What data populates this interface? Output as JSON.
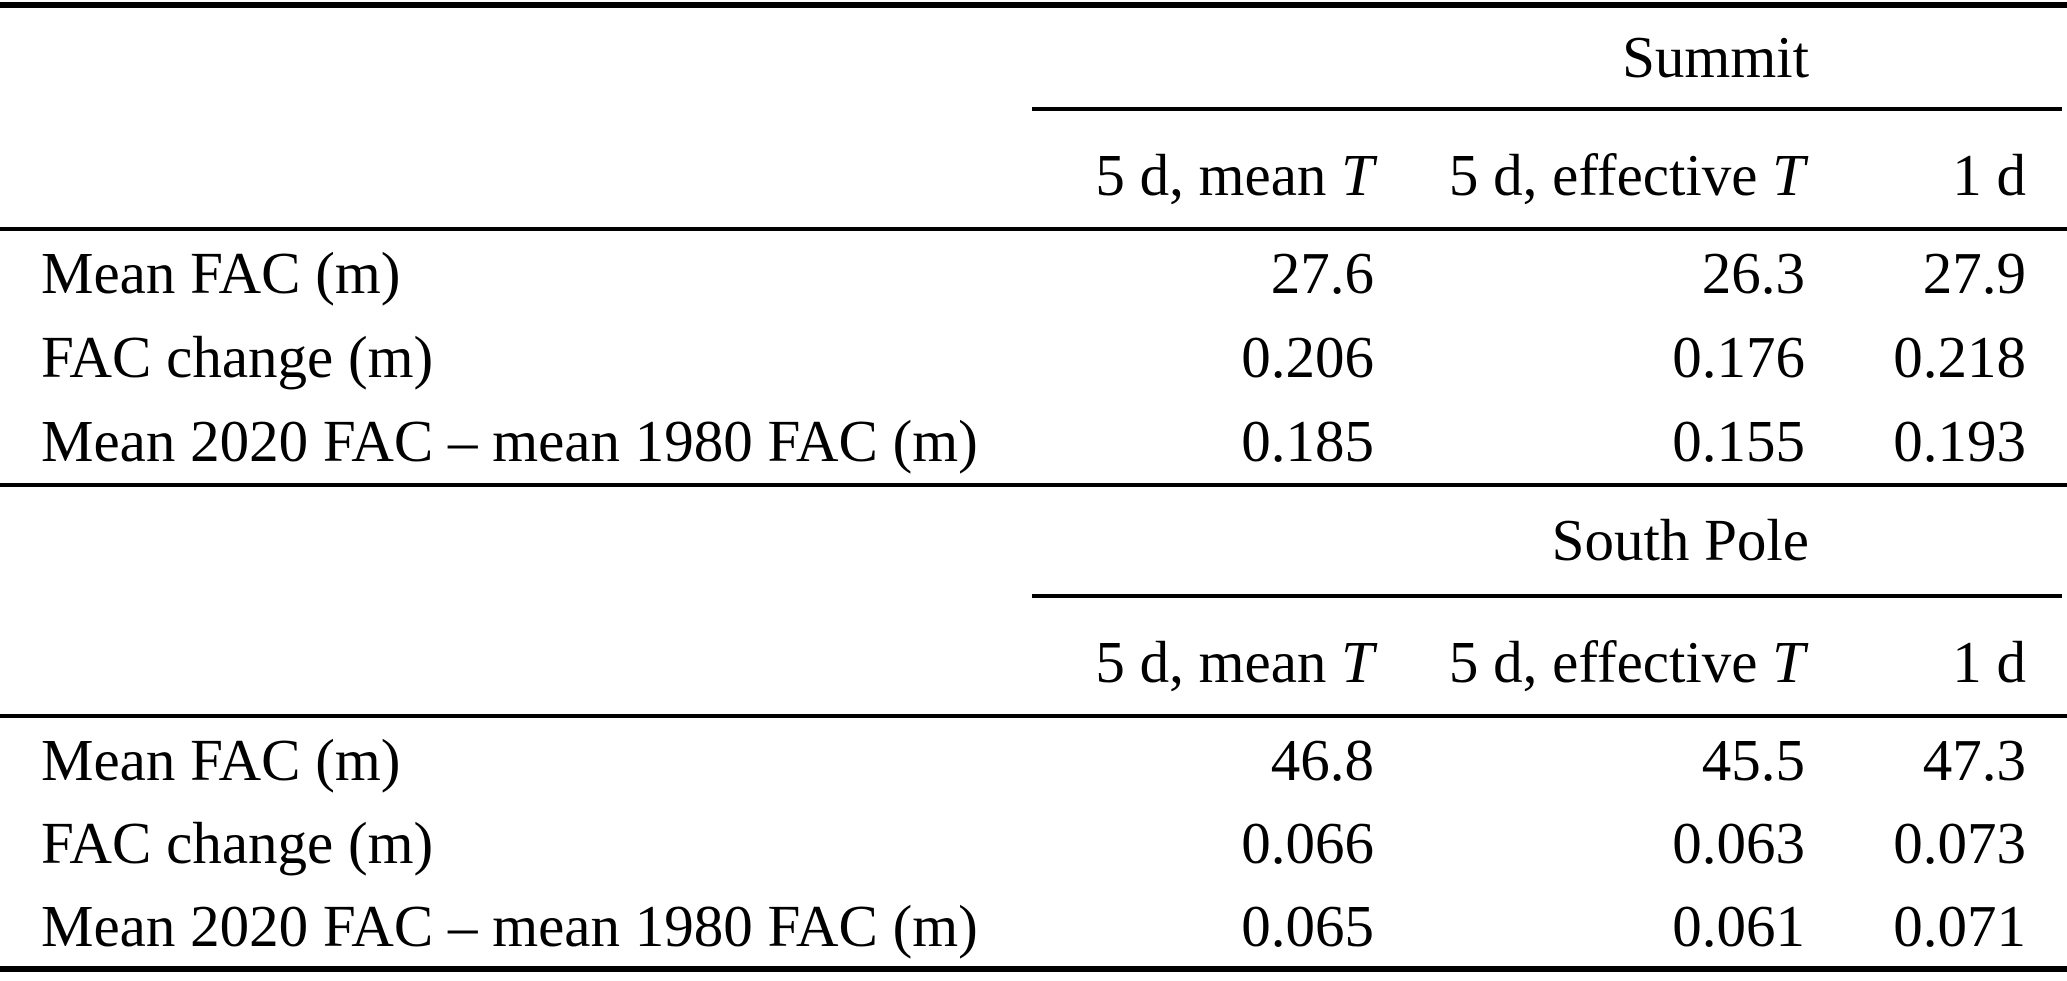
{
  "table": {
    "sections": [
      {
        "group_header": "Summit",
        "columns": [
          {
            "prefix": "5 d, mean ",
            "math": "T"
          },
          {
            "prefix": "5 d, effective ",
            "math": "T"
          },
          {
            "prefix": "1 d",
            "math": ""
          }
        ],
        "rows": [
          {
            "label": "Mean FAC (m)",
            "values": [
              "27.6",
              "26.3",
              "27.9"
            ]
          },
          {
            "label": "FAC change (m)",
            "values": [
              "0.206",
              "0.176",
              "0.218"
            ]
          },
          {
            "label": "Mean 2020 FAC – mean 1980 FAC (m)",
            "values": [
              "0.185",
              "0.155",
              "0.193"
            ]
          }
        ]
      },
      {
        "group_header": "South Pole",
        "columns": [
          {
            "prefix": "5 d, mean ",
            "math": "T"
          },
          {
            "prefix": "5 d, effective ",
            "math": "T"
          },
          {
            "prefix": "1 d",
            "math": ""
          }
        ],
        "rows": [
          {
            "label": "Mean FAC (m)",
            "values": [
              "46.8",
              "45.5",
              "47.3"
            ]
          },
          {
            "label": "FAC change (m)",
            "values": [
              "0.066",
              "0.063",
              "0.073"
            ]
          },
          {
            "label": "Mean 2020 FAC – mean 1980 FAC (m)",
            "values": [
              "0.065",
              "0.061",
              "0.071"
            ]
          }
        ]
      }
    ]
  }
}
